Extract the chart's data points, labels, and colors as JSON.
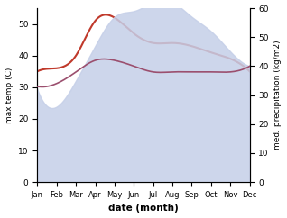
{
  "months": [
    "Jan",
    "Feb",
    "Mar",
    "Apr",
    "May",
    "Jun",
    "Jul",
    "Aug",
    "Sep",
    "Oct",
    "Nov",
    "Dec"
  ],
  "max_temp": [
    35,
    36,
    40,
    51,
    52,
    47,
    44,
    44,
    43,
    41,
    39,
    35
  ],
  "precipitation": [
    33,
    34,
    38,
    42,
    42,
    40,
    38,
    38,
    38,
    38,
    38,
    40
  ],
  "precip_fill": [
    32,
    26,
    35,
    47,
    57,
    59,
    62,
    62,
    57,
    52,
    45,
    40
  ],
  "temp_color": "#c0392b",
  "precip_line_color": "#9b4f6e",
  "fill_color": "#c5cfe8",
  "fill_alpha": 0.85,
  "ylabel_left": "max temp (C)",
  "ylabel_right": "med. precipitation (kg/m2)",
  "xlabel": "date (month)",
  "ylim_left": [
    0,
    55
  ],
  "ylim_right": [
    0,
    60
  ],
  "yticks_left": [
    0,
    10,
    20,
    30,
    40,
    50
  ],
  "yticks_right": [
    0,
    10,
    20,
    30,
    40,
    50,
    60
  ],
  "figsize": [
    3.18,
    2.42
  ],
  "dpi": 100
}
